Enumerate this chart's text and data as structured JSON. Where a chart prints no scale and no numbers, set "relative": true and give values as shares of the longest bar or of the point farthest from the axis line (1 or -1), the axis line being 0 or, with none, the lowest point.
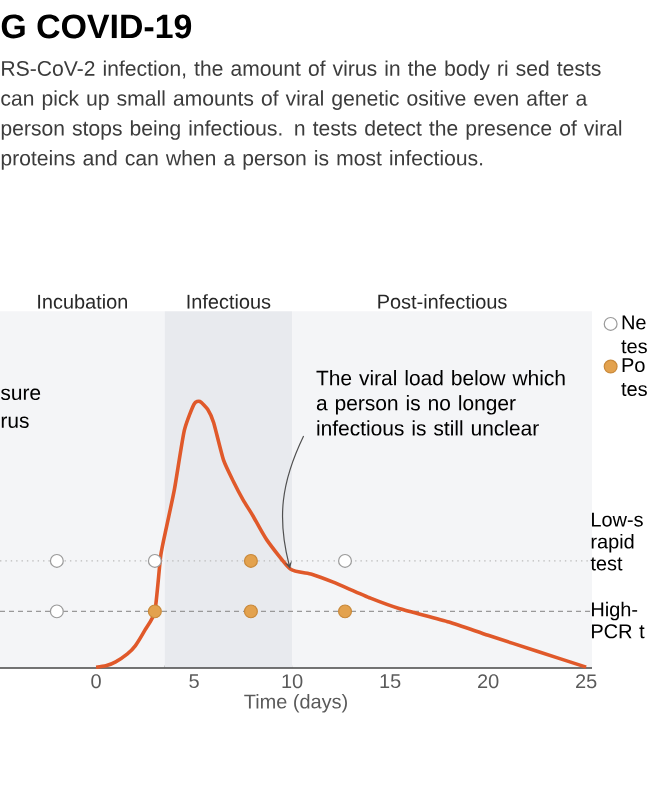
{
  "chart_data": {
    "type": "line",
    "title": "G COVID-19",
    "subtitle": "RS-CoV-2 infection, the amount of virus in the body ri sed tests can pick up small amounts of viral genetic ositive even after a person stops being infectious. n tests detect the presence of viral proteins and can when a person is most infectious.",
    "xlabel": "Time (days)",
    "relative": true,
    "xlim": [
      -4.9,
      25.3
    ],
    "xticks": [
      0,
      5,
      10,
      15,
      20,
      25
    ],
    "series": [
      {
        "color": "#e0592a",
        "marker": "none",
        "x": [
          0,
          0.5,
          1,
          1.6,
          2,
          2.5,
          3,
          3.3,
          3.6,
          4,
          4.5,
          5,
          5.3,
          5.7,
          6,
          6.5,
          7,
          7.5,
          8,
          8.7,
          9.9,
          11,
          12.1,
          14,
          15.5,
          18,
          20,
          22.5,
          25
        ],
        "values": [
          0,
          0.005,
          0.02,
          0.05,
          0.08,
          0.14,
          0.21,
          0.42,
          0.53,
          0.67,
          0.89,
          0.99,
          1.0,
          0.97,
          0.92,
          0.78,
          0.7,
          0.63,
          0.57,
          0.48,
          0.37,
          0.35,
          0.32,
          0.26,
          0.22,
          0.17,
          0.12,
          0.06,
          0
        ]
      },
      {
        "type": "scatter",
        "name": "Ne tes",
        "color": "#ffffff",
        "marker": "circle",
        "x": [
          -2,
          3,
          12.7,
          -2
        ],
        "values": [
          0.4,
          0.4,
          0.4,
          0.21
        ]
      },
      {
        "type": "scatter",
        "name": "Po tes",
        "color": "#e3a24e",
        "marker": "circle",
        "x": [
          7.9,
          3,
          7.9,
          12.7
        ],
        "values": [
          0.4,
          0.21,
          0.21,
          0.21
        ]
      }
    ],
    "bands": [
      {
        "axis": "x",
        "from": -4.9,
        "to": 3.5,
        "label": "Incubation",
        "color": "#f4f5f7"
      },
      {
        "axis": "x",
        "from": 3.5,
        "to": 10,
        "label": "Infectious",
        "color": "#e8eaee"
      },
      {
        "axis": "x",
        "from": 10,
        "to": 25.3,
        "label": "Post-infectious",
        "color": "#f4f5f7"
      }
    ],
    "ref_lines": [
      {
        "axis": "y",
        "value": 0.4,
        "label": "Low-s rapid test",
        "color": "#bbbbbb",
        "line_style": "dotted"
      },
      {
        "axis": "y",
        "value": 0.21,
        "label": "High- PCR t",
        "color": "#999999",
        "line_style": "dashed"
      }
    ],
    "annotations": [
      {
        "text": "The viral load below which a person is no longer infectious is still unclear",
        "x": 9.9,
        "y": 0.37
      },
      "sure rus"
    ],
    "legend": "top right",
    "grid": false
  }
}
